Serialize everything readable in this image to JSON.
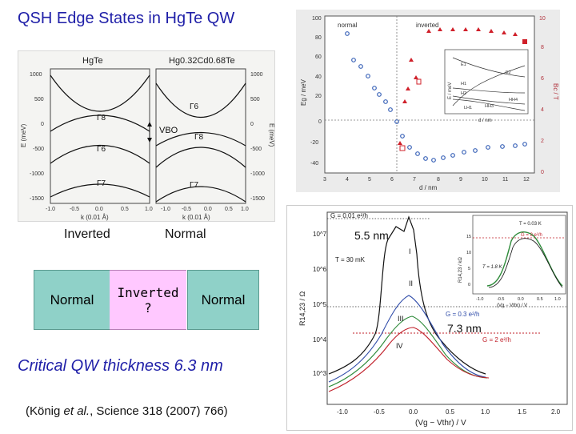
{
  "slide": {
    "title": "QSH Edge States in HgTe QW",
    "critical_text": "Critical QW thickness 6.3 nm",
    "reference": {
      "prefix": "(König ",
      "italic": "et al.",
      "suffix": ", Science 318 (2007) 766)"
    }
  },
  "band_figure": {
    "left_title": "HgTe",
    "right_title": "Hg0.32Cd0.68Te",
    "ylabel_left": "E (meV)",
    "ylabel_right": "E (meV)",
    "xlabel_left": "k (0.01 Å)",
    "xlabel_right": "k (0.01 Å)",
    "yticks": [
      "1000",
      "500",
      "0",
      "-500",
      "-1000",
      "-1500"
    ],
    "xticks": [
      "-1.0",
      "-0.5",
      "0.0",
      "0.5",
      "1.0"
    ],
    "levels_left": [
      "Γ8",
      "Γ6",
      "Γ7"
    ],
    "levels_right": [
      "Γ6",
      "Γ8",
      "Γ7"
    ],
    "vbo_label": "VBO"
  },
  "qw_diagram": {
    "top_labels": [
      "Inverted",
      "Normal"
    ],
    "layers": [
      {
        "label": "Normal",
        "color": "#8fd1c8"
      },
      {
        "label": "Inverted\n?",
        "color": "#ffc8ff"
      },
      {
        "label": "Normal",
        "color": "#8fd1c8"
      }
    ]
  },
  "gap_plot": {
    "legend_normal": "normal",
    "legend_inverted": "inverted",
    "ylabel": "Eg / meV",
    "ylabel_right": "Bc / T",
    "xlabel": "d / nm",
    "xticks": [
      "3",
      "4",
      "5",
      "6",
      "7",
      "8",
      "9",
      "10",
      "11",
      "12"
    ],
    "yticks": [
      "100",
      "80",
      "60",
      "40",
      "20",
      "0",
      "-20",
      "-40"
    ],
    "yticks_right": [
      "10",
      "8",
      "6",
      "4",
      "2",
      "0"
    ],
    "inset_labels": [
      "E1",
      "H1",
      "H2",
      "E2",
      "HH3",
      "HH4",
      "LH1"
    ],
    "inset_xlabel": "d / nm",
    "inset_ylabel": "E / meV"
  },
  "resistance_plot": {
    "ylabel": "R14,23 / Ω",
    "xlabel": "(Vg − Vthr) / V",
    "xticks": [
      "-1.0",
      "-0.5",
      "0.0",
      "0.5",
      "1.0",
      "1.5",
      "2.0"
    ],
    "yticks": [
      "10^7",
      "10^6",
      "10^5",
      "10^4",
      "10^3"
    ],
    "annotations": {
      "g_top": "G = 0.01 e²/h",
      "t_main": "T = 30 mK",
      "g_mid": "G = 0.3 e²/h",
      "g_bottom": "G = 2 e²/h",
      "roman": [
        "I",
        "II",
        "III",
        "IV"
      ],
      "label_55": "5.5 nm",
      "label_73": "7.3 nm"
    },
    "inset": {
      "labels": [
        "T = 0.03 K",
        "G = 2 e²/h",
        "T = 1.8 K"
      ],
      "ylabel": "R14,23 / kΩ",
      "xlabel": "(Vg − Vthr) / V",
      "yticks": [
        "15",
        "10",
        "5",
        "0"
      ],
      "xticks": [
        "-1.0",
        "-0.5",
        "0.0",
        "0.5",
        "1.0"
      ]
    }
  },
  "colors": {
    "accent": "#1f1fa8",
    "normal_layer": "#8fd1c8",
    "inverted_layer": "#ffc8ff",
    "marker_blue": "#3a63b8",
    "marker_red": "#d0202a"
  }
}
